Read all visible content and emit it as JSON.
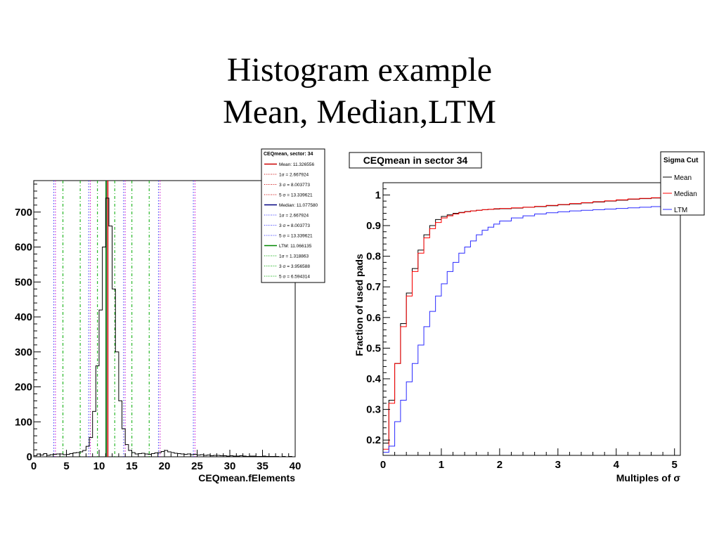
{
  "slide": {
    "title_line1": "Histogram example",
    "title_line2": "Mean, Median,LTM"
  },
  "colors": {
    "mean": "#cc0000",
    "median": "#000080",
    "ltm": "#008800",
    "histogram": "#000000",
    "cut_magenta": "#cc00cc",
    "cut_blue": "#3333ff",
    "cut_green": "#00aa00",
    "curve_mean": "#000000",
    "curve_median": "#ff0000",
    "curve_ltm": "#2a2aff"
  },
  "chart_data": [
    {
      "type": "bar",
      "xlabel": "CEQmean.fElements",
      "xlim": [
        0,
        40
      ],
      "ylim": [
        0,
        790
      ],
      "xticks": [
        "0",
        "5",
        "10",
        "15",
        "20",
        "25",
        "30",
        "35",
        "40"
      ],
      "yticks": [
        "0",
        "100",
        "200",
        "300",
        "400",
        "500",
        "600",
        "700"
      ],
      "bin_width": 0.5,
      "bin_starts": [
        0,
        0.5,
        1,
        1.5,
        2,
        2.5,
        3,
        3.5,
        4,
        4.5,
        5,
        5.5,
        6,
        6.5,
        7,
        7.5,
        8,
        8.5,
        9,
        9.5,
        10,
        10.5,
        11,
        11.5,
        12,
        12.5,
        13,
        13.5,
        14,
        14.5,
        15,
        15.5,
        16,
        16.5,
        17,
        17.5,
        18,
        18.5,
        19,
        19.5,
        20,
        20.5,
        21,
        21.5,
        22,
        22.5,
        23,
        23.5,
        24,
        24.5,
        25,
        25.5,
        26,
        26.5,
        27,
        27.5,
        28,
        28.5,
        29,
        29.5,
        30,
        30.5,
        31,
        31.5,
        32,
        32.5,
        33,
        33.5,
        34,
        34.5,
        35,
        35.5,
        36,
        36.5,
        37,
        37.5,
        38,
        38.5,
        39,
        39.5
      ],
      "counts": [
        3,
        8,
        5,
        9,
        4,
        6,
        7,
        8,
        8,
        6,
        7,
        9,
        11,
        12,
        14,
        18,
        30,
        55,
        130,
        260,
        420,
        600,
        740,
        660,
        480,
        300,
        160,
        80,
        35,
        18,
        12,
        8,
        9,
        10,
        8,
        7,
        9,
        11,
        12,
        15,
        18,
        14,
        12,
        10,
        9,
        8,
        7,
        8,
        6,
        7,
        5,
        6,
        4,
        5,
        3,
        4,
        4,
        3,
        3,
        2,
        3,
        2,
        2,
        3,
        2,
        1,
        2,
        2,
        1,
        1,
        2,
        1,
        1,
        1,
        1,
        0,
        1,
        0,
        1,
        0
      ],
      "legend": {
        "title": "CEQmean, sector: 34",
        "entries": [
          {
            "label": "Mean: 11.326556",
            "style": "mean-solid"
          },
          {
            "label": "1σ = 2.667924",
            "style": "mean-dot"
          },
          {
            "label": "3 σ = 8.003773",
            "style": "mean-dot"
          },
          {
            "label": "5 σ = 13.339621",
            "style": "mean-dot"
          },
          {
            "label": "Median: 11.077580",
            "style": "median-solid"
          },
          {
            "label": "1σ = 2.667924",
            "style": "median-dot"
          },
          {
            "label": "3 σ = 8.003773",
            "style": "median-dot"
          },
          {
            "label": "5 σ = 13.339621",
            "style": "median-dot"
          },
          {
            "label": "LTM: 11.066135",
            "style": "ltm-solid"
          },
          {
            "label": "1σ = 1.318863",
            "style": "ltm-dot"
          },
          {
            "label": "3 σ = 3.956588",
            "style": "ltm-dot"
          },
          {
            "label": "5 σ = 6.594314",
            "style": "ltm-dot"
          }
        ]
      },
      "vertical_lines": [
        {
          "x": 11.33,
          "style": "mean-solid"
        },
        {
          "x": 11.08,
          "style": "median-solid"
        },
        {
          "x": 11.07,
          "style": "ltm-solid"
        },
        {
          "x": 8.66,
          "style": "magenta-dot"
        },
        {
          "x": 13.99,
          "style": "magenta-dot"
        },
        {
          "x": 3.32,
          "style": "magenta-dot"
        },
        {
          "x": 19.33,
          "style": "magenta-dot"
        },
        {
          "x": 24.67,
          "style": "magenta-dot"
        },
        {
          "x": 8.41,
          "style": "blue-dot"
        },
        {
          "x": 13.75,
          "style": "blue-dot"
        },
        {
          "x": 3.07,
          "style": "blue-dot"
        },
        {
          "x": 19.08,
          "style": "blue-dot"
        },
        {
          "x": 24.42,
          "style": "blue-dot"
        },
        {
          "x": 9.75,
          "style": "green-dot"
        },
        {
          "x": 12.39,
          "style": "green-dot"
        },
        {
          "x": 7.11,
          "style": "green-dot"
        },
        {
          "x": 15.02,
          "style": "green-dot"
        },
        {
          "x": 4.47,
          "style": "green-dot"
        },
        {
          "x": 17.66,
          "style": "green-dot"
        }
      ]
    },
    {
      "type": "line",
      "title": "CEQmean in sector 34",
      "xlabel": "Multiples of σ",
      "ylabel": "Fraction of used pads",
      "xlim": [
        0,
        5.1
      ],
      "ylim": [
        0.15,
        1.04
      ],
      "xticks": [
        "0",
        "1",
        "2",
        "3",
        "4",
        "5"
      ],
      "yticks": [
        "0.2",
        "0.3",
        "0.4",
        "0.5",
        "0.6",
        "0.7",
        "0.8",
        "0.9",
        "1"
      ],
      "step": true,
      "x": [
        0,
        0.1,
        0.2,
        0.3,
        0.4,
        0.5,
        0.6,
        0.7,
        0.8,
        0.9,
        1.0,
        1.1,
        1.2,
        1.3,
        1.4,
        1.5,
        1.6,
        1.7,
        1.8,
        1.9,
        2.0,
        2.2,
        2.4,
        2.6,
        2.8,
        3.0,
        3.2,
        3.4,
        3.6,
        3.8,
        4.0,
        4.2,
        4.4,
        4.6,
        4.8,
        5.0
      ],
      "legend_title": "Sigma Cut",
      "series": [
        {
          "name": "Mean",
          "values": [
            0.19,
            0.33,
            0.45,
            0.58,
            0.68,
            0.76,
            0.82,
            0.87,
            0.9,
            0.92,
            0.93,
            0.935,
            0.94,
            0.943,
            0.946,
            0.948,
            0.95,
            0.952,
            0.953,
            0.954,
            0.955,
            0.957,
            0.96,
            0.962,
            0.965,
            0.968,
            0.971,
            0.974,
            0.977,
            0.98,
            0.983,
            0.986,
            0.988,
            0.99,
            0.992,
            0.994
          ]
        },
        {
          "name": "Median",
          "values": [
            0.17,
            0.32,
            0.45,
            0.57,
            0.67,
            0.75,
            0.81,
            0.86,
            0.89,
            0.91,
            0.925,
            0.932,
            0.938,
            0.942,
            0.945,
            0.948,
            0.95,
            0.952,
            0.953,
            0.955,
            0.956,
            0.958,
            0.96,
            0.963,
            0.966,
            0.969,
            0.972,
            0.975,
            0.978,
            0.981,
            0.984,
            0.987,
            0.989,
            0.991,
            0.993,
            0.995
          ]
        },
        {
          "name": "LTM",
          "values": [
            0.16,
            0.18,
            0.26,
            0.33,
            0.39,
            0.45,
            0.51,
            0.57,
            0.62,
            0.67,
            0.71,
            0.75,
            0.78,
            0.81,
            0.83,
            0.85,
            0.87,
            0.885,
            0.895,
            0.905,
            0.915,
            0.925,
            0.932,
            0.938,
            0.942,
            0.945,
            0.948,
            0.95,
            0.952,
            0.954,
            0.956,
            0.958,
            0.96,
            0.962,
            0.964,
            0.965
          ]
        }
      ]
    }
  ]
}
